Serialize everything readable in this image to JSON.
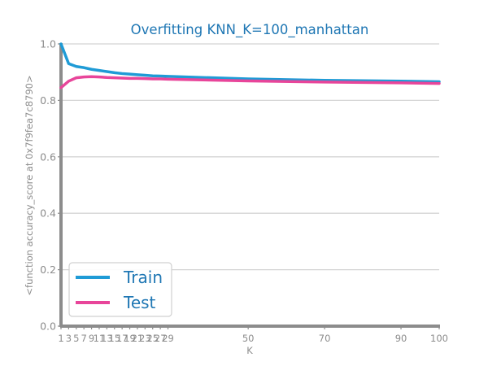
{
  "chart_data": {
    "type": "line",
    "title": "Overfitting KNN_K=100_manhattan",
    "xlabel": "K",
    "ylabel": "<function accuracy_score at 0x7f9fea7c8790>",
    "xlim": [
      1,
      100
    ],
    "ylim": [
      0.0,
      1.0
    ],
    "x_ticks": [
      1,
      3,
      5,
      7,
      9,
      11,
      13,
      15,
      17,
      19,
      21,
      23,
      25,
      27,
      29,
      50,
      70,
      90,
      100
    ],
    "x_tick_labels": [
      "1",
      "3",
      "5",
      "7",
      "9",
      "11",
      "13",
      "15",
      "17",
      "19",
      "21",
      "23",
      "25",
      "27",
      "29",
      "50",
      "70",
      "90",
      "100"
    ],
    "y_ticks": [
      0.0,
      0.2,
      0.4,
      0.6,
      0.8,
      1.0
    ],
    "y_tick_labels": [
      "0.0",
      "0.2",
      "0.4",
      "0.6",
      "0.8",
      "1.0"
    ],
    "grid": "horizontal",
    "legend_position": "lower-left",
    "x": [
      1,
      3,
      5,
      7,
      9,
      11,
      13,
      15,
      17,
      19,
      21,
      23,
      25,
      27,
      29,
      50,
      70,
      90,
      100
    ],
    "series": [
      {
        "name": "Train",
        "color": "#1f9bd6",
        "values": [
          1.0,
          0.93,
          0.92,
          0.916,
          0.91,
          0.906,
          0.902,
          0.898,
          0.895,
          0.893,
          0.891,
          0.889,
          0.887,
          0.886,
          0.885,
          0.876,
          0.871,
          0.868,
          0.866
        ]
      },
      {
        "name": "Test",
        "color": "#e8459a",
        "values": [
          0.845,
          0.868,
          0.88,
          0.883,
          0.884,
          0.883,
          0.881,
          0.88,
          0.879,
          0.878,
          0.878,
          0.877,
          0.876,
          0.876,
          0.875,
          0.869,
          0.865,
          0.862,
          0.86
        ]
      }
    ]
  }
}
